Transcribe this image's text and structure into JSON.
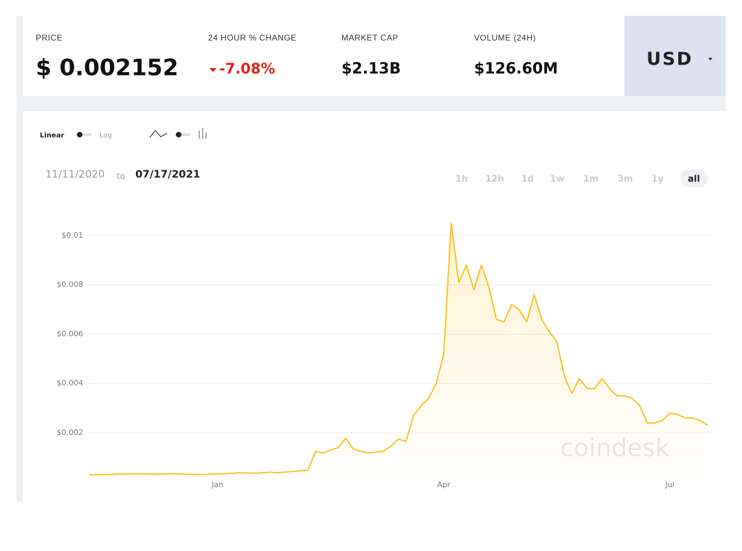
{
  "header": {
    "price_label": "PRICE",
    "price": "$ 0.002152",
    "change_label": "24 HOUR % CHANGE",
    "change": "-7.08%",
    "market_cap_label": "MARKET CAP",
    "market_cap": "$2.13B",
    "volume_label": "VOLUME (24H)",
    "volume": "$126.60M",
    "currency": "USD"
  },
  "controls": {
    "linear": "Linear",
    "log": "Log",
    "from": "11/11/2020",
    "to_word": "to",
    "to": "07/17/2021",
    "ranges": [
      "1h",
      "12h",
      "1d",
      "1w",
      "1m",
      "3m",
      "1y",
      "all"
    ],
    "active_range": "all"
  },
  "chart_data": {
    "type": "line",
    "watermark": "coindesk",
    "categories": [
      null,
      null,
      null,
      null,
      null,
      null,
      null,
      null,
      null,
      null,
      null,
      null,
      null,
      null,
      null,
      null,
      null,
      "Jan",
      null,
      null,
      null,
      null,
      null,
      null,
      null,
      null,
      null,
      null,
      null,
      null,
      null,
      null,
      null,
      null,
      null,
      null,
      null,
      null,
      null,
      null,
      null,
      null,
      null,
      null,
      null,
      null,
      null,
      "Apr",
      null,
      null,
      null,
      null,
      null,
      null,
      null,
      null,
      null,
      null,
      null,
      null,
      null,
      null,
      null,
      null,
      null,
      null,
      null,
      null,
      null,
      null,
      null,
      null,
      null,
      null,
      null,
      null,
      null,
      "Jul",
      null,
      null,
      null,
      null,
      null
    ],
    "series": [
      {
        "name": "Price",
        "color": "#f7c325",
        "values": [
          0.0003,
          0.0003,
          0.00031,
          0.00031,
          0.00034,
          0.00032,
          0.00034,
          0.00033,
          0.00033,
          0.00032,
          0.00033,
          0.00034,
          0.00033,
          0.00032,
          0.00031,
          0.00031,
          0.00032,
          0.00033,
          0.00034,
          0.00036,
          0.00038,
          0.00037,
          0.00036,
          0.00038,
          0.0004,
          0.00038,
          0.00041,
          0.00043,
          0.00046,
          0.00048,
          0.00125,
          0.00118,
          0.0013,
          0.0014,
          0.00178,
          0.00135,
          0.00125,
          0.00118,
          0.00122,
          0.00125,
          0.00145,
          0.00175,
          0.00165,
          0.0027,
          0.0031,
          0.0034,
          0.004,
          0.0052,
          0.0105,
          0.0081,
          0.0088,
          0.0078,
          0.0088,
          0.0079,
          0.0066,
          0.0065,
          0.0072,
          0.007,
          0.0065,
          0.0076,
          0.0066,
          0.0061,
          0.0057,
          0.0043,
          0.0036,
          0.0042,
          0.0038,
          0.0038,
          0.0042,
          0.0038,
          0.0035,
          0.0035,
          0.0034,
          0.0031,
          0.0024,
          0.0024,
          0.0025,
          0.0028,
          0.00275,
          0.0026,
          0.0026,
          0.0025,
          0.0023
        ]
      }
    ],
    "ylim": [
      0,
      0.011
    ],
    "yticks": [
      {
        "value": 0.002,
        "label": "$0.002"
      },
      {
        "value": 0.004,
        "label": "$0.004"
      },
      {
        "value": 0.006,
        "label": "$0.006"
      },
      {
        "value": 0.008,
        "label": "$0.008"
      },
      {
        "value": 0.01,
        "label": "$0.01"
      }
    ],
    "grid": true
  }
}
